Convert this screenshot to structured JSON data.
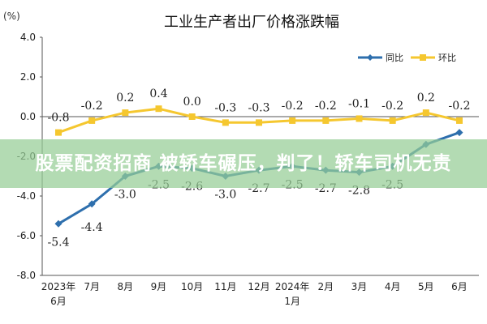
{
  "chart_data": {
    "type": "line",
    "title": "工业生产者出厂价格涨跌幅",
    "yunit": "(%)",
    "ylim": [
      -8.0,
      4.0
    ],
    "yticks": [
      "4.0",
      "2.0",
      "0.0",
      "-2.0",
      "-4.0",
      "-6.0",
      "-8.0"
    ],
    "categories": [
      [
        "2023年",
        "6月"
      ],
      [
        "7月"
      ],
      [
        "8月"
      ],
      [
        "9月"
      ],
      [
        "10月"
      ],
      [
        "11月"
      ],
      [
        "12月"
      ],
      [
        "2024年",
        "1月"
      ],
      [
        "2月"
      ],
      [
        "3月"
      ],
      [
        "4月"
      ],
      [
        "5月"
      ],
      [
        "6月"
      ]
    ],
    "legend_position": "top-right",
    "grid": false,
    "series": [
      {
        "name": "同比",
        "color": "#2e6fad",
        "values": [
          -5.4,
          -4.4,
          -3.0,
          -2.5,
          -2.6,
          -3.0,
          -2.7,
          -2.5,
          -2.7,
          -2.8,
          -2.5,
          -1.4,
          -0.8
        ],
        "labels": [
          "-5.4",
          "-4.4",
          "-3.0",
          "-2.5",
          "-2.6",
          "-3.0",
          "-2.7",
          "-2.5",
          "-2.7",
          "-2.8",
          "-2.5",
          "",
          ""
        ]
      },
      {
        "name": "环比",
        "color": "#f5c72f",
        "values": [
          -0.8,
          -0.2,
          0.2,
          0.4,
          0.0,
          -0.3,
          -0.3,
          -0.2,
          -0.2,
          -0.1,
          -0.2,
          0.2,
          -0.2
        ],
        "labels": [
          "-0.8",
          "-0.2",
          "0.2",
          "0.4",
          "0.0",
          "-0.3",
          "-0.3",
          "-0.2",
          "-0.2",
          "-0.1",
          "-0.2",
          "0.2",
          "-0.2"
        ]
      }
    ]
  },
  "overlay": {
    "headline": "股票配资招商 被轿车碾压，判了！轿车司机无责"
  }
}
